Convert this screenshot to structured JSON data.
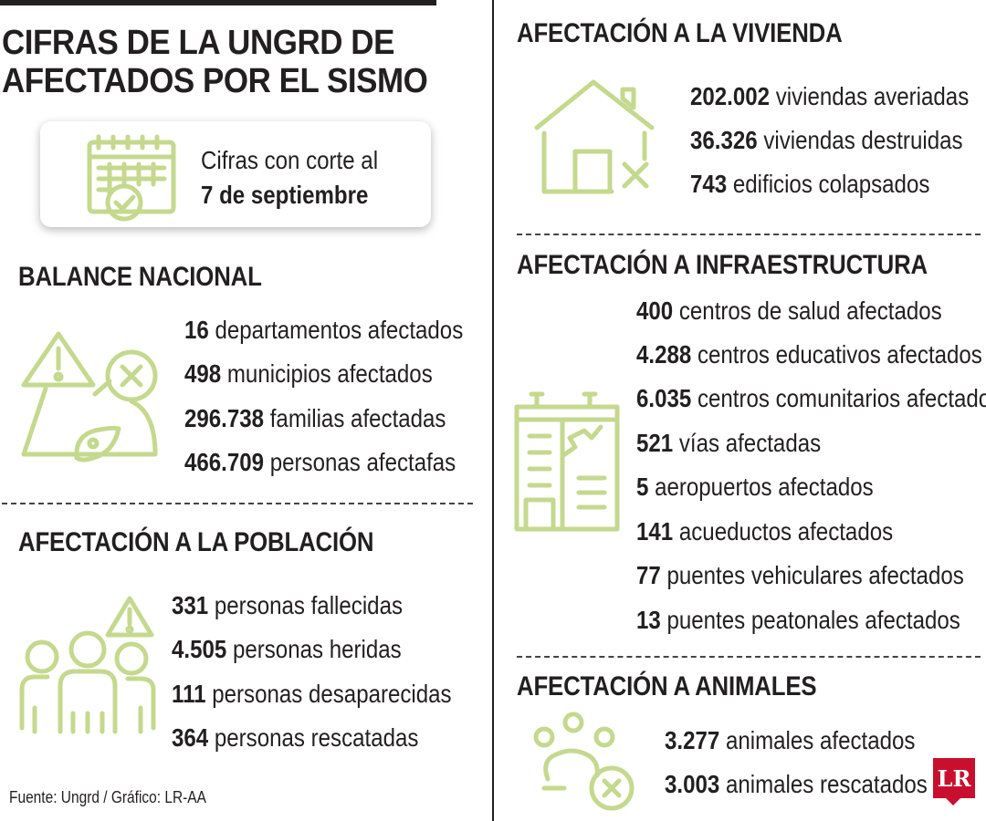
{
  "header": {
    "title_line1": "CIFRAS DE LA UNGRD DE",
    "title_line2": "AFECTADOS POR EL SISMO"
  },
  "date_card": {
    "line1": "Cifras con corte al",
    "line2": "7 de septiembre"
  },
  "balance": {
    "title": "BALANCE NACIONAL",
    "items": [
      {
        "num": "16",
        "label": "departamentos afectados"
      },
      {
        "num": "498",
        "label": "municipios afectados"
      },
      {
        "num": "296.738",
        "label": "familias afectadas"
      },
      {
        "num": "466.709",
        "label": "personas afectafas"
      }
    ]
  },
  "poblacion": {
    "title": "AFECTACIÓN A LA POBLACIÓN",
    "items": [
      {
        "num": "331",
        "label": "personas fallecidas"
      },
      {
        "num": "4.505",
        "label": "personas heridas"
      },
      {
        "num": "111",
        "label": "personas desaparecidas"
      },
      {
        "num": "364",
        "label": "personas rescatadas"
      }
    ]
  },
  "vivienda": {
    "title": "AFECTACIÓN A LA VIVIENDA",
    "items": [
      {
        "num": "202.002",
        "label": "viviendas averiadas"
      },
      {
        "num": "36.326",
        "label": "viviendas destruidas"
      },
      {
        "num": "743",
        "label": "edificios colapsados"
      }
    ]
  },
  "infraestructura": {
    "title": "AFECTACIÓN A INFRAESTRUCTURA",
    "items": [
      {
        "num": "400",
        "label": "centros de salud afectados"
      },
      {
        "num": "4.288",
        "label": "centros educativos afectados"
      },
      {
        "num": "6.035",
        "label": "centros comunitarios afectados"
      },
      {
        "num": "521",
        "label": "vías afectadas"
      },
      {
        "num": "5",
        "label": "aeropuertos afectados"
      },
      {
        "num": "141",
        "label": "acueductos afectados"
      },
      {
        "num": "77",
        "label": "puentes vehiculares afectados"
      },
      {
        "num": "13",
        "label": " puentes peatonales afectados"
      }
    ]
  },
  "animales": {
    "title": "AFECTACIÓN A ANIMALES",
    "items": [
      {
        "num": "3.277",
        "label": "animales afectados"
      },
      {
        "num": "3.003",
        "label": "animales rescatados"
      }
    ]
  },
  "footer": {
    "source": "Fuente: Ungrd / Gráfico: LR-AA",
    "logo": "LR"
  },
  "colors": {
    "icon": "#c5d98e",
    "text": "#231f20",
    "logo": "#c8102e"
  }
}
